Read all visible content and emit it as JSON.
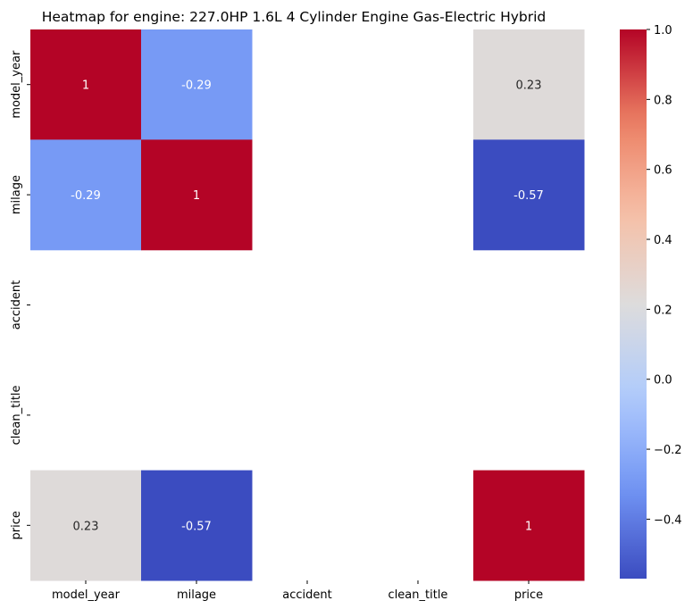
{
  "chart_data": {
    "type": "heatmap",
    "title": "Heatmap for engine: 227.0HP 1.6L 4 Cylinder Engine Gas-Electric Hybrid",
    "x_labels": [
      "model_year",
      "milage",
      "accident",
      "clean_title",
      "price"
    ],
    "y_labels": [
      "model_year",
      "milage",
      "accident",
      "clean_title",
      "price"
    ],
    "matrix": [
      [
        1.0,
        -0.29,
        null,
        null,
        0.23
      ],
      [
        -0.29,
        1.0,
        null,
        null,
        -0.57
      ],
      [
        null,
        null,
        null,
        null,
        null
      ],
      [
        null,
        null,
        null,
        null,
        null
      ],
      [
        0.23,
        -0.57,
        null,
        null,
        1.0
      ]
    ],
    "annotations": [
      [
        "1",
        "-0.29",
        "",
        "",
        "0.23"
      ],
      [
        "-0.29",
        "1",
        "",
        "",
        "-0.57"
      ],
      [
        "",
        "",
        "",
        "",
        ""
      ],
      [
        "",
        "",
        "",
        "",
        ""
      ],
      [
        "0.23",
        "-0.57",
        "",
        "",
        "1"
      ]
    ],
    "colormap": "coolwarm",
    "vmin": -0.57,
    "vmax": 1.0,
    "colorbar_ticks": [
      {
        "value": 1.0,
        "label": "1.0"
      },
      {
        "value": 0.8,
        "label": "0.8"
      },
      {
        "value": 0.6,
        "label": "0.6"
      },
      {
        "value": 0.4,
        "label": "0.4"
      },
      {
        "value": 0.2,
        "label": "0.2"
      },
      {
        "value": 0.0,
        "label": "0.0"
      },
      {
        "value": -0.2,
        "label": "−0.2"
      },
      {
        "value": -0.4,
        "label": "−0.4"
      }
    ],
    "colormap_stops": [
      "#3b4cc0",
      "#7396f5",
      "#b0cbfc",
      "#dddcdc",
      "#f6bfa6",
      "#ec7f63",
      "#b40426"
    ],
    "grid": false,
    "legend": "colorbar-right"
  }
}
